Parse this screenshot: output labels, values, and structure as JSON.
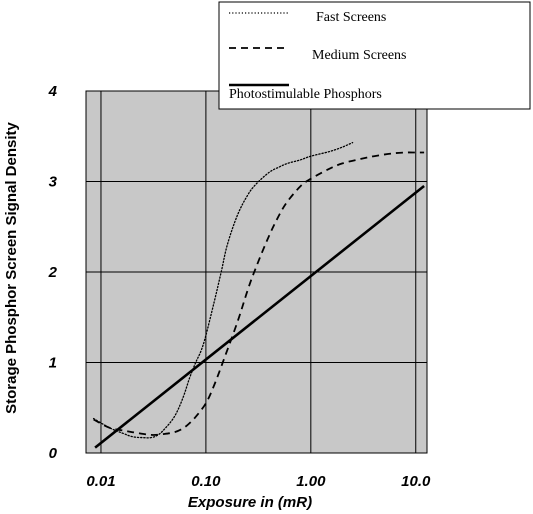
{
  "chart_data": {
    "type": "line",
    "xlabel": "Exposure in (mR)",
    "ylabel": "Storage Phosphor Screen Signal Density",
    "x_scale": "log",
    "xlim": [
      0.0072,
      12.8
    ],
    "ylim": [
      0,
      4
    ],
    "x_ticks": [
      0.01,
      0.1,
      1.0,
      10.0
    ],
    "x_tick_labels": [
      "0.01",
      "0.10",
      "1.00",
      "10.0"
    ],
    "y_ticks": [
      0,
      1,
      2,
      3,
      4
    ],
    "y_tick_labels": [
      "0",
      "1",
      "2",
      "3",
      "4"
    ],
    "grid": true,
    "legend_position": "top-right",
    "colors": {
      "plot_bg": "#c8c8c8",
      "line": "#000000",
      "grid": "#000000"
    },
    "series": [
      {
        "name": "Fast Screens",
        "style": "dotted",
        "width": 1.3,
        "x": [
          0.0085,
          0.012,
          0.016,
          0.02,
          0.025,
          0.03,
          0.035,
          0.04,
          0.05,
          0.06,
          0.07,
          0.08,
          0.09,
          0.1,
          0.12,
          0.14,
          0.16,
          0.2,
          0.25,
          0.3,
          0.4,
          0.5,
          0.6,
          0.8,
          1.0,
          1.5,
          2.0,
          2.5
        ],
        "y": [
          0.38,
          0.28,
          0.22,
          0.18,
          0.17,
          0.17,
          0.2,
          0.26,
          0.4,
          0.6,
          0.83,
          1.0,
          1.13,
          1.3,
          1.67,
          2.0,
          2.3,
          2.63,
          2.85,
          2.97,
          3.1,
          3.16,
          3.2,
          3.24,
          3.28,
          3.33,
          3.38,
          3.43
        ]
      },
      {
        "name": "Medium Screens",
        "style": "dashed",
        "width": 1.8,
        "x": [
          0.0085,
          0.012,
          0.016,
          0.02,
          0.03,
          0.04,
          0.05,
          0.06,
          0.07,
          0.08,
          0.1,
          0.12,
          0.15,
          0.2,
          0.25,
          0.3,
          0.4,
          0.5,
          0.6,
          0.8,
          1.0,
          1.5,
          2.0,
          3.0,
          4.0,
          6.0,
          8.0,
          10.0,
          12.0
        ],
        "y": [
          0.37,
          0.28,
          0.25,
          0.23,
          0.2,
          0.21,
          0.23,
          0.27,
          0.33,
          0.4,
          0.55,
          0.75,
          1.05,
          1.45,
          1.8,
          2.05,
          2.4,
          2.63,
          2.78,
          2.95,
          3.03,
          3.14,
          3.2,
          3.25,
          3.28,
          3.31,
          3.32,
          3.32,
          3.32
        ]
      },
      {
        "name": "Photostimulable Phosphors",
        "style": "solid",
        "width": 2.6,
        "x": [
          0.0088,
          12.0
        ],
        "y": [
          0.06,
          2.95
        ]
      }
    ]
  }
}
